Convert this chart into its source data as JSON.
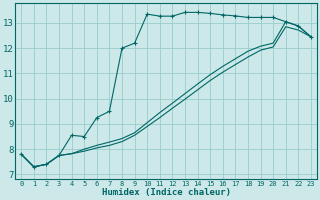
{
  "xlabel": "Humidex (Indice chaleur)",
  "bg_color": "#cce8e8",
  "grid_color": "#99cccc",
  "line_color": "#006666",
  "xlim": [
    -0.5,
    23.5
  ],
  "ylim": [
    6.8,
    13.8
  ],
  "xticks": [
    0,
    1,
    2,
    3,
    4,
    5,
    6,
    7,
    8,
    9,
    10,
    11,
    12,
    13,
    14,
    15,
    16,
    17,
    18,
    19,
    20,
    21,
    22,
    23
  ],
  "yticks": [
    7,
    8,
    9,
    10,
    11,
    12,
    13
  ],
  "curve1_x": [
    0,
    1,
    2,
    3,
    4,
    5,
    6,
    7,
    8,
    9,
    10,
    11,
    12,
    13,
    14,
    15,
    16,
    17,
    18,
    19,
    20,
    21,
    22,
    23
  ],
  "curve1_y": [
    7.8,
    7.3,
    7.4,
    7.75,
    8.55,
    8.5,
    9.25,
    9.5,
    12.0,
    12.2,
    13.35,
    13.27,
    13.27,
    13.42,
    13.42,
    13.38,
    13.32,
    13.28,
    13.22,
    13.22,
    13.22,
    13.05,
    12.88,
    12.45
  ],
  "curve2_x": [
    0,
    1,
    2,
    3,
    4,
    5,
    6,
    7,
    8,
    9,
    10,
    11,
    12,
    13,
    14,
    15,
    16,
    17,
    18,
    19,
    20,
    21,
    22,
    23
  ],
  "curve2_y": [
    7.8,
    7.3,
    7.4,
    7.75,
    7.82,
    8.0,
    8.15,
    8.28,
    8.42,
    8.65,
    9.05,
    9.45,
    9.82,
    10.2,
    10.58,
    10.95,
    11.28,
    11.58,
    11.88,
    12.08,
    12.2,
    13.05,
    12.88,
    12.45
  ],
  "curve3_x": [
    0,
    1,
    2,
    3,
    4,
    5,
    6,
    7,
    8,
    9,
    10,
    11,
    12,
    13,
    14,
    15,
    16,
    17,
    18,
    19,
    20,
    21,
    22,
    23
  ],
  "curve3_y": [
    7.8,
    7.3,
    7.4,
    7.75,
    7.82,
    7.92,
    8.05,
    8.15,
    8.3,
    8.55,
    8.9,
    9.25,
    9.62,
    9.98,
    10.35,
    10.72,
    11.05,
    11.35,
    11.65,
    11.92,
    12.05,
    12.85,
    12.72,
    12.45
  ]
}
